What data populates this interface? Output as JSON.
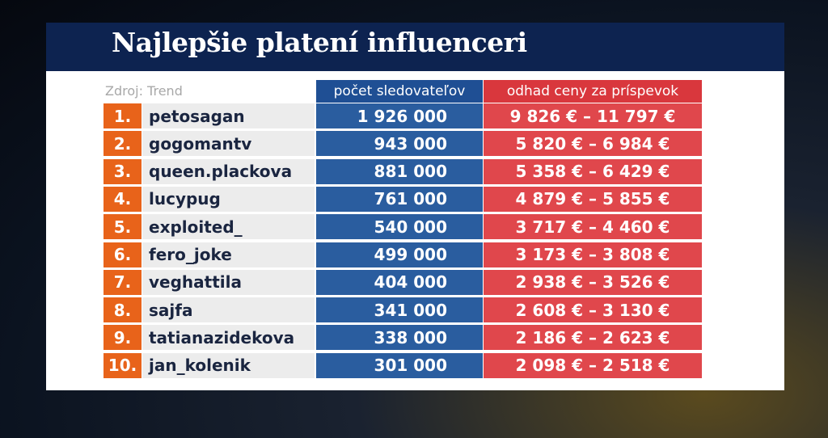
{
  "header": {
    "title": "Najlepšie platení influenceri"
  },
  "source": "Zdroj: Trend",
  "table": {
    "columns": [
      "počet sledovateľov",
      "odhad ceny za príspevok"
    ],
    "rows": [
      [
        "1.",
        "petosagan",
        "1 926 000",
        "9 826 € – 11 797 €"
      ],
      [
        "2.",
        "gogomantv",
        "943 000",
        "5 820 € – 6 984 €"
      ],
      [
        "3.",
        "queen.plackova",
        "881 000",
        "5 358 € – 6 429 €"
      ],
      [
        "4.",
        "lucypug",
        "761 000",
        "4 879 € – 5 855 €"
      ],
      [
        "5.",
        "exploited_",
        "540 000",
        "3 717 € – 4 460 €"
      ],
      [
        "6.",
        "fero_joke",
        "499 000",
        "3 173 € – 3 808 €"
      ],
      [
        "7.",
        "veghattila",
        "404 000",
        "2 938 € – 3 526 €"
      ],
      [
        "8.",
        "sajfa",
        "341 000",
        "2 608 € – 3 130 €"
      ],
      [
        "9.",
        "tatianazidekova",
        "338 000",
        "2 186 € – 2 623 €"
      ],
      [
        "10.",
        "jan_kolenik",
        "301 000",
        "2 098 € – 2 518 €"
      ]
    ]
  }
}
